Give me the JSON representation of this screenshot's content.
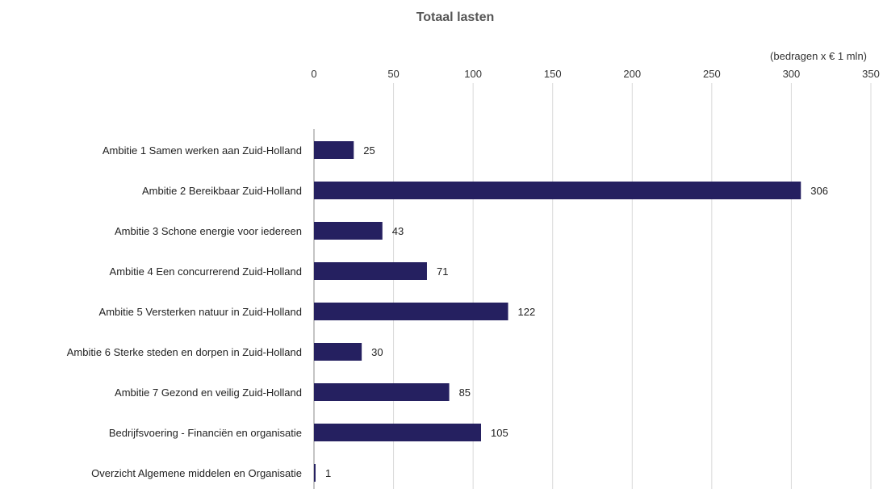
{
  "chart_data": {
    "type": "bar",
    "orientation": "horizontal",
    "title": "Totaal lasten",
    "unit_note": "(bedragen  x € 1 mln)",
    "xlim": [
      0,
      350
    ],
    "x_ticks": [
      0,
      50,
      100,
      150,
      200,
      250,
      300,
      350
    ],
    "x_axis_position": "top",
    "grid": true,
    "legend": "none",
    "bar_color": "#252060",
    "categories": [
      "Ambitie 1 Samen werken aan Zuid-Holland",
      "Ambitie 2 Bereikbaar Zuid-Holland",
      "Ambitie 3 Schone energie voor iedereen",
      "Ambitie 4 Een concurrerend Zuid-Holland",
      "Ambitie 5 Versterken natuur in Zuid-Holland",
      "Ambitie 6 Sterke steden en dorpen in Zuid-Holland",
      "Ambitie 7 Gezond en veilig Zuid-Holland",
      "Bedrijfsvoering - Financiën en organisatie",
      "Overzicht Algemene middelen en Organisatie"
    ],
    "values": [
      25,
      306,
      43,
      71,
      122,
      30,
      85,
      105,
      1
    ]
  }
}
